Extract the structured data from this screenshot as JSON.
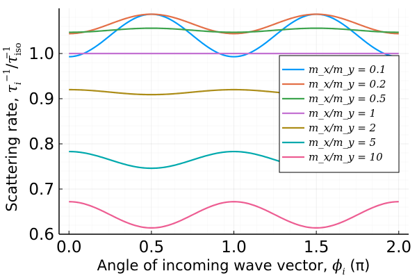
{
  "chart_data": {
    "type": "line",
    "xlabel": "Angle of incoming wave vector, ϕ_i (π)",
    "ylabel": "Scattering rate, τ_i^{-1}/τ_iso^{-1}",
    "xlim": [
      -0.06,
      2.06
    ],
    "ylim": [
      0.6,
      1.1
    ],
    "x_ticks": [
      "0.0",
      "0.5",
      "1.0",
      "1.5",
      "2.0"
    ],
    "y_ticks": [
      "0.6",
      "0.7",
      "0.8",
      "0.9",
      "1.0"
    ],
    "grid": true,
    "legend_position": "right",
    "series": [
      {
        "name": "m_x/m_y = 0.1",
        "color": "#009AFA",
        "baseline": 0.993,
        "amplitude": 0.094,
        "power": 1,
        "x": [
          0,
          0.25,
          0.5,
          0.75,
          1.0,
          1.25,
          1.5,
          1.75,
          2.0
        ],
        "y": [
          0.993,
          1.04,
          1.087,
          1.04,
          0.993,
          1.04,
          1.087,
          1.04,
          0.993
        ]
      },
      {
        "name": "m_x/m_y = 0.2",
        "color": "#E36F47",
        "baseline": 1.044,
        "amplitude": 0.043,
        "power": 1,
        "x": [
          0,
          0.25,
          0.5,
          0.75,
          1.0,
          1.25,
          1.5,
          1.75,
          2.0
        ],
        "y": [
          1.044,
          1.066,
          1.087,
          1.066,
          1.044,
          1.066,
          1.087,
          1.066,
          1.044
        ]
      },
      {
        "name": "m_x/m_y = 0.5",
        "color": "#3EA44E",
        "baseline": 1.047,
        "amplitude": 0.009,
        "power": 1,
        "x": [
          0,
          0.25,
          0.5,
          0.75,
          1.0,
          1.25,
          1.5,
          1.75,
          2.0
        ],
        "y": [
          1.047,
          1.052,
          1.056,
          1.052,
          1.047,
          1.052,
          1.056,
          1.052,
          1.047
        ]
      },
      {
        "name": "m_x/m_y = 1",
        "color": "#C371D2",
        "baseline": 1.0,
        "amplitude": 0.0,
        "power": 1,
        "x": [
          0,
          0.5,
          1.0,
          1.5,
          2.0
        ],
        "y": [
          1.0,
          1.0,
          1.0,
          1.0,
          1.0
        ]
      },
      {
        "name": "m_x/m_y = 2",
        "color": "#AC8D18",
        "baseline": 0.92,
        "amplitude": -0.011,
        "power": 1,
        "x": [
          0,
          0.25,
          0.5,
          0.75,
          1.0,
          1.25,
          1.5,
          1.75,
          2.0
        ],
        "y": [
          0.92,
          0.915,
          0.909,
          0.915,
          0.92,
          0.915,
          0.909,
          0.915,
          0.92
        ]
      },
      {
        "name": "m_x/m_y = 5",
        "color": "#00A9AD",
        "baseline": 0.783,
        "amplitude": -0.037,
        "power": 1,
        "x": [
          0,
          0.25,
          0.5,
          0.75,
          1.0,
          1.25,
          1.5,
          1.75,
          2.0
        ],
        "y": [
          0.783,
          0.765,
          0.746,
          0.765,
          0.783,
          0.765,
          0.746,
          0.765,
          0.783
        ]
      },
      {
        "name": "m_x/m_y = 10",
        "color": "#ED5D92",
        "baseline": 0.672,
        "amplitude": -0.058,
        "power": 1,
        "x": [
          0,
          0.25,
          0.5,
          0.75,
          1.0,
          1.25,
          1.5,
          1.75,
          2.0
        ],
        "y": [
          0.672,
          0.643,
          0.614,
          0.643,
          0.672,
          0.643,
          0.614,
          0.643,
          0.672
        ]
      }
    ]
  }
}
